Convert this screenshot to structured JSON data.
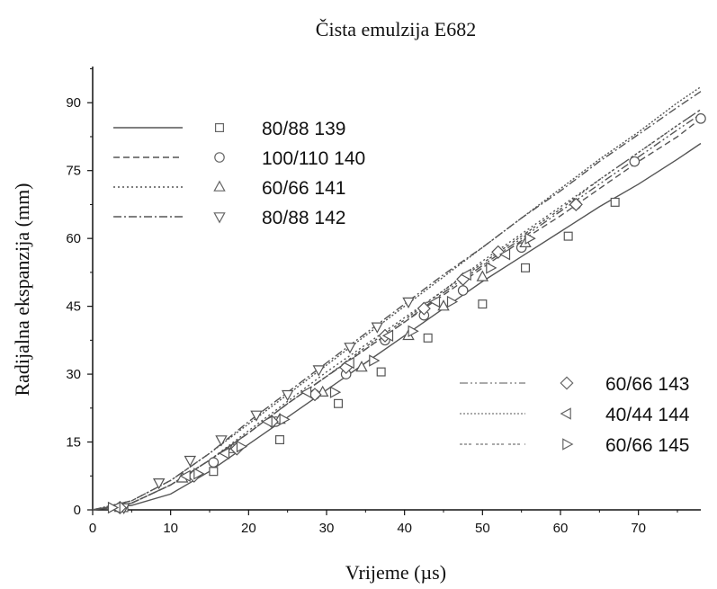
{
  "chart_data": {
    "type": "line",
    "title": "Čista emulzija E682",
    "xlabel": "Vrijeme (µs)",
    "ylabel": "Radijalna ekspanzija (mm)",
    "xlim": [
      0,
      78
    ],
    "ylim": [
      0,
      98
    ],
    "xticks": [
      0,
      10,
      20,
      30,
      40,
      50,
      60,
      70
    ],
    "yticks": [
      0,
      15,
      30,
      45,
      60,
      75,
      90
    ],
    "grid": false,
    "legend_groups": [
      {
        "placement": "top-left",
        "entries": [
          0,
          1,
          2,
          3
        ]
      },
      {
        "placement": "center-right",
        "entries": [
          4,
          5,
          6
        ]
      }
    ],
    "series": [
      {
        "name": "80/88 139",
        "marker": "square",
        "line": "solid",
        "color": "#555555",
        "curve": [
          [
            0,
            0
          ],
          [
            5,
            1
          ],
          [
            10,
            3.5
          ],
          [
            15,
            8.5
          ],
          [
            20,
            14.5
          ],
          [
            25,
            20.5
          ],
          [
            30,
            26.5
          ],
          [
            35,
            32.5
          ],
          [
            40,
            38.5
          ],
          [
            45,
            44.5
          ],
          [
            50,
            50.5
          ],
          [
            55,
            56
          ],
          [
            60,
            61.5
          ],
          [
            65,
            67
          ],
          [
            70,
            72
          ],
          [
            75,
            77.5
          ],
          [
            78,
            81
          ]
        ],
        "points": [
          [
            4,
            0.5
          ],
          [
            15.5,
            8.5
          ],
          [
            24,
            15.5
          ],
          [
            31.5,
            23.5
          ],
          [
            37,
            30.5
          ],
          [
            43,
            38
          ],
          [
            50,
            45.5
          ],
          [
            55.5,
            53.5
          ],
          [
            61,
            60.5
          ],
          [
            67,
            68
          ]
        ]
      },
      {
        "name": "100/110 140",
        "marker": "circle",
        "line": "dashed",
        "color": "#555555",
        "curve": [
          [
            0,
            0
          ],
          [
            5,
            1.5
          ],
          [
            10,
            5.5
          ],
          [
            15,
            11
          ],
          [
            20,
            17
          ],
          [
            25,
            23.5
          ],
          [
            30,
            29.5
          ],
          [
            35,
            35.5
          ],
          [
            40,
            41.5
          ],
          [
            45,
            47.5
          ],
          [
            50,
            53.5
          ],
          [
            55,
            59.5
          ],
          [
            60,
            65
          ],
          [
            65,
            71
          ],
          [
            70,
            77
          ],
          [
            75,
            82.5
          ],
          [
            78,
            86.5
          ]
        ],
        "points": [
          [
            3.5,
            0.5
          ],
          [
            15.5,
            10.5
          ],
          [
            23.5,
            19.5
          ],
          [
            28.5,
            25.5
          ],
          [
            32.5,
            30
          ],
          [
            37.5,
            37.5
          ],
          [
            42.5,
            43
          ],
          [
            47.5,
            48.5
          ],
          [
            55,
            58
          ],
          [
            62,
            67.5
          ],
          [
            69.5,
            77
          ],
          [
            78,
            86.5
          ]
        ]
      },
      {
        "name": "60/66 141",
        "marker": "triangle-up",
        "line": "dotted",
        "color": "#555555",
        "curve": [
          [
            0,
            0
          ],
          [
            5,
            1.5
          ],
          [
            10,
            5.5
          ],
          [
            15,
            11
          ],
          [
            20,
            17.5
          ],
          [
            25,
            24
          ],
          [
            30,
            30.5
          ],
          [
            35,
            36.5
          ],
          [
            40,
            42.5
          ],
          [
            45,
            48.5
          ],
          [
            50,
            55
          ],
          [
            55,
            61
          ],
          [
            60,
            67
          ],
          [
            65,
            73
          ],
          [
            70,
            79
          ],
          [
            75,
            85
          ],
          [
            78,
            88.5
          ]
        ],
        "points": [
          [
            3.5,
            0.5
          ],
          [
            11.5,
            7
          ],
          [
            18,
            13.5
          ],
          [
            24,
            20
          ],
          [
            29.5,
            26
          ],
          [
            34.5,
            31.5
          ],
          [
            40.5,
            38.5
          ],
          [
            45,
            45
          ],
          [
            50,
            51.5
          ],
          [
            55.5,
            59
          ]
        ]
      },
      {
        "name": "80/88 142",
        "marker": "triangle-down",
        "line": "dashdot",
        "color": "#555555",
        "curve": [
          [
            0,
            0
          ],
          [
            5,
            2
          ],
          [
            10,
            6.5
          ],
          [
            15,
            12.5
          ],
          [
            20,
            19.5
          ],
          [
            25,
            26
          ],
          [
            30,
            32.5
          ],
          [
            35,
            39
          ],
          [
            40,
            45.5
          ],
          [
            45,
            52
          ],
          [
            50,
            58
          ],
          [
            55,
            64.5
          ],
          [
            60,
            70.5
          ],
          [
            65,
            77
          ],
          [
            70,
            83
          ],
          [
            75,
            89
          ],
          [
            78,
            92.5
          ]
        ],
        "points": [
          [
            4,
            0.5
          ],
          [
            8.5,
            6
          ],
          [
            12.5,
            11
          ],
          [
            16.5,
            15.5
          ],
          [
            21,
            21
          ],
          [
            25,
            25.5
          ],
          [
            29,
            31
          ],
          [
            33,
            36
          ],
          [
            36.5,
            40.5
          ],
          [
            40.5,
            46
          ]
        ]
      },
      {
        "name": "60/66 143",
        "marker": "diamond",
        "line": "dashdotdot",
        "color": "#555555",
        "curve": [
          [
            0,
            0
          ],
          [
            5,
            1.5
          ],
          [
            10,
            5.5
          ],
          [
            15,
            11
          ],
          [
            20,
            17
          ],
          [
            25,
            23.5
          ],
          [
            30,
            29.5
          ],
          [
            35,
            35.5
          ],
          [
            40,
            41.5
          ],
          [
            45,
            48
          ],
          [
            50,
            54
          ],
          [
            55,
            60
          ],
          [
            60,
            66
          ],
          [
            65,
            72
          ],
          [
            70,
            78
          ],
          [
            75,
            84
          ],
          [
            78,
            87.5
          ]
        ],
        "points": [
          [
            3.5,
            0.5
          ],
          [
            13,
            7.5
          ],
          [
            18.5,
            13.5
          ],
          [
            23,
            19.5
          ],
          [
            28.5,
            25.5
          ],
          [
            32.5,
            31.5
          ],
          [
            37.5,
            38.5
          ],
          [
            42.5,
            44.5
          ],
          [
            47.5,
            51
          ],
          [
            52,
            57
          ],
          [
            62,
            67.5
          ]
        ]
      },
      {
        "name": "40/44 144",
        "marker": "triangle-left",
        "line": "shortdotted",
        "color": "#555555",
        "curve": [
          [
            0,
            0
          ],
          [
            5,
            2
          ],
          [
            10,
            6.5
          ],
          [
            15,
            12.5
          ],
          [
            20,
            19
          ],
          [
            25,
            25.5
          ],
          [
            30,
            32
          ],
          [
            35,
            38.5
          ],
          [
            40,
            45
          ],
          [
            45,
            51.5
          ],
          [
            50,
            58
          ],
          [
            55,
            64.5
          ],
          [
            60,
            71
          ],
          [
            65,
            77.5
          ],
          [
            70,
            83.5
          ],
          [
            75,
            90
          ],
          [
            78,
            93.5
          ]
        ],
        "points": [
          [
            3,
            0.5
          ],
          [
            12,
            7.5
          ],
          [
            17,
            12.5
          ],
          [
            22.5,
            19.5
          ],
          [
            27.5,
            26
          ],
          [
            33,
            32.5
          ],
          [
            38,
            38.5
          ],
          [
            44,
            46
          ],
          [
            48,
            52
          ],
          [
            53,
            56.5
          ]
        ]
      },
      {
        "name": "60/66 145",
        "marker": "triangle-right",
        "line": "longdotted",
        "color": "#555555",
        "curve": [
          [
            0,
            0
          ],
          [
            5,
            1.5
          ],
          [
            10,
            5.5
          ],
          [
            15,
            11
          ],
          [
            20,
            17
          ],
          [
            25,
            23.5
          ],
          [
            30,
            29.5
          ],
          [
            35,
            36
          ],
          [
            40,
            42
          ],
          [
            45,
            48.5
          ],
          [
            50,
            54.5
          ],
          [
            55,
            60.5
          ],
          [
            60,
            66.5
          ],
          [
            65,
            73
          ],
          [
            70,
            79
          ],
          [
            75,
            85
          ],
          [
            78,
            88.5
          ]
        ],
        "points": [
          [
            2.5,
            0.5
          ],
          [
            13.5,
            8
          ],
          [
            19,
            14
          ],
          [
            24.5,
            20
          ],
          [
            31,
            26
          ],
          [
            36,
            33
          ],
          [
            41,
            39.5
          ],
          [
            46,
            46
          ],
          [
            51,
            53.5
          ],
          [
            56,
            60
          ]
        ]
      }
    ]
  }
}
